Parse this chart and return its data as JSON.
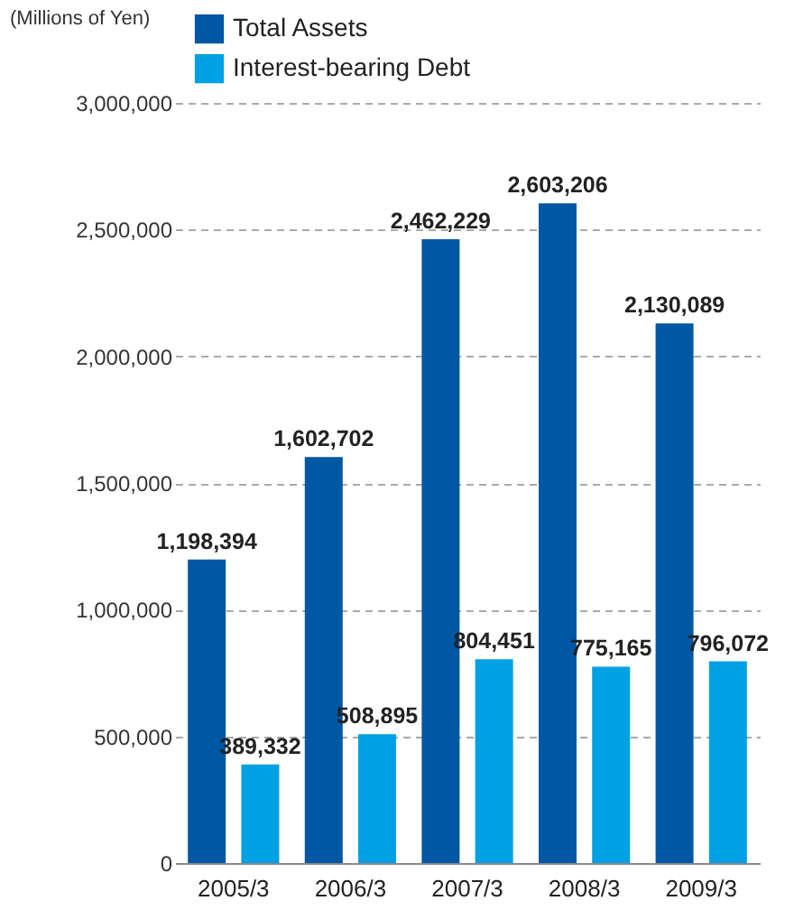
{
  "chart_data": {
    "type": "bar",
    "ylabel": "(Millions of Yen)",
    "categories": [
      "2005/3",
      "2006/3",
      "2007/3",
      "2008/3",
      "2009/3"
    ],
    "series": [
      {
        "name": "Total Assets",
        "color": "#0057a4",
        "values": [
          1198394,
          1602702,
          2462229,
          2603206,
          2130089
        ],
        "value_labels": [
          "1,198,394",
          "1,602,702",
          "2,462,229",
          "2,603,206",
          "2,130,089"
        ]
      },
      {
        "name": "Interest-bearing Debt",
        "color": "#00a0e4",
        "values": [
          389332,
          508895,
          804451,
          775165,
          796072
        ],
        "value_labels": [
          "389,332",
          "508,895",
          "804,451",
          "775,165",
          "796,072"
        ]
      }
    ],
    "ylim": [
      0,
      3000000
    ],
    "yticks": [
      0,
      {
        "value": 500000,
        "label": "500,000"
      },
      {
        "value": 1000000,
        "label": "1,000,000"
      },
      {
        "value": 1500000,
        "label": "1,500,000"
      },
      {
        "value": 2000000,
        "label": "2,000,000"
      },
      {
        "value": 2500000,
        "label": "2,500,000"
      },
      {
        "value": 3000000,
        "label": "3,000,000"
      }
    ],
    "grid": "y",
    "legend": "top left"
  }
}
